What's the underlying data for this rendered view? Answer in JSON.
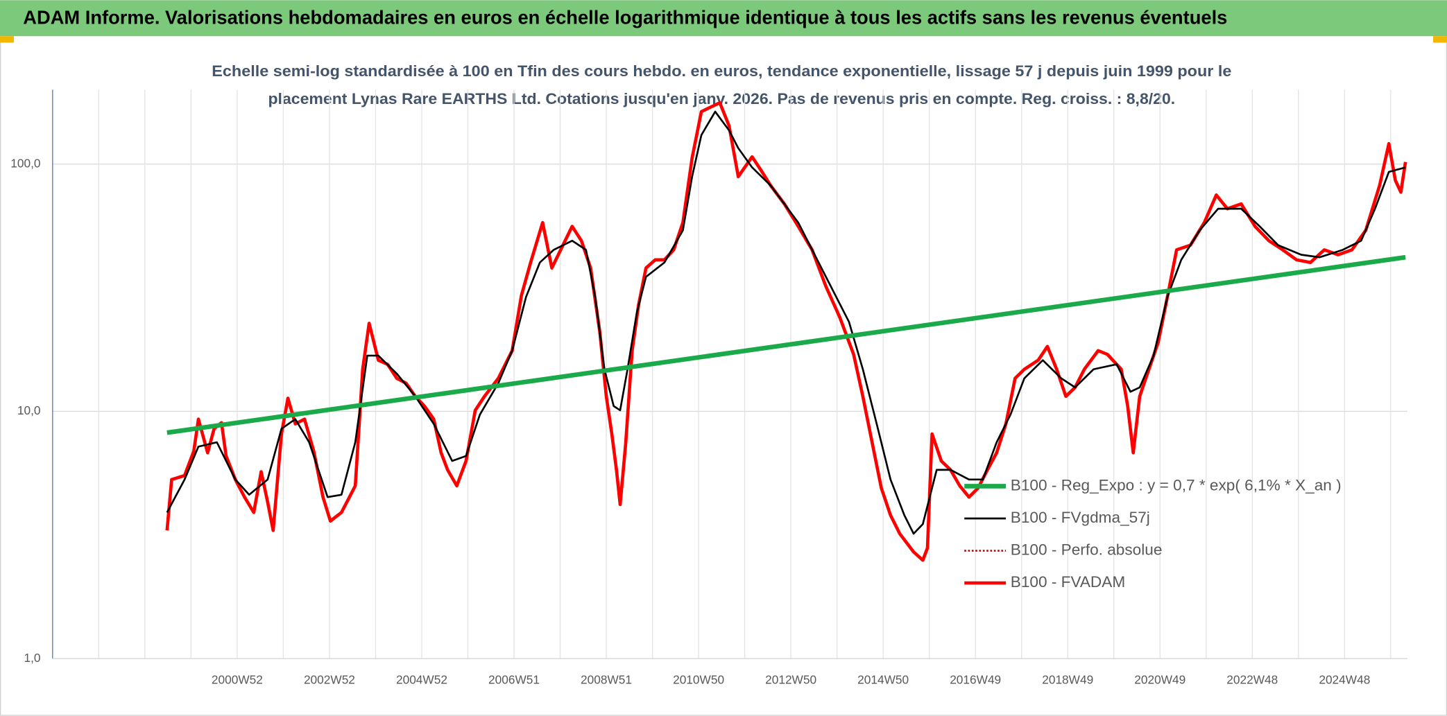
{
  "chart_data": {
    "type": "line",
    "title": "ADAM Informe. Valorisations hebdomadaires en euros en échelle logarithmique identique à tous les actifs sans les revenus éventuels",
    "subtitle": [
      "Echelle semi-log standardisée à 100 en Tfin des cours hebdo. en euros, tendance exponentielle, lissage 57 j depuis juin 1999 pour le",
      "placement Lynas Rare EARTHS Ltd. Cotations jusqu'en janv. 2026. Pas de revenus pris en compte. Reg. croiss. : 8,8/20."
    ],
    "log_y": true,
    "grid": true,
    "legend": "lower right",
    "xlim": [
      1997,
      2026.36
    ],
    "xticks": [
      {
        "value": 2001,
        "label": "2000W52"
      },
      {
        "value": 2003,
        "label": "2002W52"
      },
      {
        "value": 2005,
        "label": "2004W52"
      },
      {
        "value": 2007,
        "label": "2006W51"
      },
      {
        "value": 2009,
        "label": "2008W51"
      },
      {
        "value": 2011,
        "label": "2010W50"
      },
      {
        "value": 2013,
        "label": "2012W50"
      },
      {
        "value": 2015,
        "label": "2014W50"
      },
      {
        "value": 2017,
        "label": "2016W49"
      },
      {
        "value": 2019,
        "label": "2018W49"
      },
      {
        "value": 2021,
        "label": "2020W49"
      },
      {
        "value": 2023,
        "label": "2022W48"
      },
      {
        "value": 2025,
        "label": "2024W48"
      }
    ],
    "ylim": [
      1,
      200
    ],
    "yticks": [
      {
        "value": 1,
        "label": "1,0"
      },
      {
        "value": 10,
        "label": "10,0"
      },
      {
        "value": 100,
        "label": "100,0"
      }
    ],
    "series": [
      {
        "name": "B100 - Reg_Expo : y = 0,7 * exp( 6,1% *  X_an )",
        "color": "#1aaa4a",
        "width": 5,
        "x": [
          1999.48,
          2026.32
        ],
        "values": [
          8.2,
          42
        ]
      },
      {
        "name": "B100 - FVgdma_57j",
        "color": "#000000",
        "width": 2,
        "x": [
          1999.48,
          1999.86,
          2000.16,
          2000.56,
          2000.96,
          2001.26,
          2001.66,
          2001.96,
          2002.26,
          2002.56,
          2002.96,
          2003.26,
          2003.56,
          2003.82,
          2004.06,
          2004.46,
          2004.86,
          2005.26,
          2005.66,
          2005.96,
          2006.26,
          2006.66,
          2006.96,
          2007.26,
          2007.56,
          2007.86,
          2008.26,
          2008.56,
          2008.76,
          2008.96,
          2009.16,
          2009.3,
          2009.46,
          2009.66,
          2009.86,
          2010.26,
          2010.66,
          2010.86,
          2011.06,
          2011.36,
          2011.66,
          2011.86,
          2012.16,
          2012.56,
          2013.16,
          2013.76,
          2014.26,
          2014.56,
          2014.86,
          2015.16,
          2015.46,
          2015.66,
          2015.86,
          2016.16,
          2016.46,
          2016.86,
          2017.16,
          2017.46,
          2017.76,
          2018.06,
          2018.46,
          2018.86,
          2019.16,
          2019.56,
          2020.06,
          2020.36,
          2020.56,
          2020.86,
          2021.16,
          2021.46,
          2021.86,
          2022.26,
          2022.76,
          2023.16,
          2023.56,
          2024.06,
          2024.46,
          2024.96,
          2025.36,
          2025.66,
          2025.96,
          2026.32
        ],
        "values": [
          3.9,
          5.3,
          7.2,
          7.5,
          5.3,
          4.6,
          5.3,
          8.5,
          9.3,
          7.5,
          4.5,
          4.6,
          7.5,
          16.8,
          16.8,
          14.2,
          11.5,
          8.9,
          6.3,
          6.6,
          9.7,
          13,
          17.6,
          29,
          40,
          45,
          49,
          45,
          29,
          14.8,
          10.5,
          10.1,
          14.8,
          25,
          35,
          40,
          54,
          89,
          131,
          163,
          137,
          116,
          97,
          82,
          58,
          35,
          23,
          14.8,
          8.9,
          5.3,
          3.8,
          3.2,
          3.5,
          5.8,
          5.8,
          5.3,
          5.3,
          7.5,
          9.7,
          13.6,
          16.1,
          13.6,
          12.5,
          14.8,
          15.5,
          12,
          12.5,
          16.8,
          29,
          41,
          54,
          66,
          66,
          56,
          47,
          43,
          42,
          45,
          49,
          66,
          93,
          97
        ]
      },
      {
        "name": "B100 - Perfo. absolue",
        "color": "#c00000",
        "width": 2,
        "dash": "dotted"
      },
      {
        "name": "B100 - FVADAM",
        "color": "#ff0000",
        "width": 3.5,
        "x": [
          1999.48,
          1999.58,
          1999.86,
          2000.06,
          2000.16,
          2000.36,
          2000.5,
          2000.66,
          2000.76,
          2000.96,
          2001.16,
          2001.36,
          2001.52,
          2001.66,
          2001.78,
          2001.96,
          2002.1,
          2002.26,
          2002.46,
          2002.66,
          2002.86,
          2003.02,
          2003.26,
          2003.56,
          2003.72,
          2003.86,
          2004.06,
          2004.26,
          2004.46,
          2004.66,
          2004.86,
          2005.06,
          2005.26,
          2005.42,
          2005.56,
          2005.76,
          2005.96,
          2006.16,
          2006.36,
          2006.66,
          2006.96,
          2007.16,
          2007.36,
          2007.62,
          2007.82,
          2008.06,
          2008.26,
          2008.46,
          2008.66,
          2008.86,
          2009.0,
          2009.12,
          2009.22,
          2009.3,
          2009.42,
          2009.56,
          2009.7,
          2009.86,
          2010.06,
          2010.26,
          2010.46,
          2010.66,
          2010.86,
          2011.06,
          2011.26,
          2011.46,
          2011.66,
          2011.86,
          2012.16,
          2012.36,
          2012.56,
          2012.86,
          2013.16,
          2013.46,
          2013.76,
          2014.06,
          2014.36,
          2014.56,
          2014.76,
          2014.96,
          2015.16,
          2015.36,
          2015.66,
          2015.86,
          2015.96,
          2016.06,
          2016.26,
          2016.46,
          2016.66,
          2016.86,
          2017.06,
          2017.26,
          2017.46,
          2017.66,
          2017.86,
          2018.06,
          2018.36,
          2018.56,
          2018.76,
          2018.96,
          2019.16,
          2019.36,
          2019.66,
          2019.86,
          2020.16,
          2020.3,
          2020.42,
          2020.56,
          2020.76,
          2020.96,
          2021.16,
          2021.36,
          2021.66,
          2021.96,
          2022.22,
          2022.46,
          2022.76,
          2023.06,
          2023.36,
          2023.66,
          2023.96,
          2024.26,
          2024.56,
          2024.86,
          2025.16,
          2025.46,
          2025.76,
          2025.96,
          2026.1,
          2026.22,
          2026.32
        ],
        "values": [
          3.3,
          5.3,
          5.5,
          6.9,
          9.3,
          6.8,
          8.5,
          9,
          6.6,
          5.3,
          4.5,
          3.9,
          5.7,
          4.3,
          3.3,
          8.1,
          11.3,
          8.9,
          9.3,
          6.9,
          4.5,
          3.6,
          3.9,
          5.0,
          14.8,
          22.7,
          16.1,
          15.5,
          13.6,
          13.0,
          11.5,
          10.5,
          9.3,
          6.8,
          5.8,
          5.0,
          6.3,
          10.1,
          11.5,
          13.6,
          17.6,
          29.4,
          40,
          58,
          38,
          47,
          56,
          49,
          38,
          20.9,
          11.5,
          8.1,
          5.8,
          4.2,
          7.4,
          17.6,
          27,
          38,
          41,
          41,
          45,
          58,
          106,
          163,
          170,
          177,
          143,
          89,
          107,
          94,
          82,
          69,
          56,
          45,
          32,
          24,
          17,
          11.5,
          7.5,
          4.9,
          3.8,
          3.2,
          2.7,
          2.5,
          2.8,
          8.1,
          6.3,
          5.8,
          5.0,
          4.5,
          4.9,
          5.8,
          6.8,
          8.9,
          13.6,
          14.8,
          16.1,
          18.3,
          14.8,
          11.5,
          12.5,
          14.8,
          17.6,
          17,
          14.8,
          10.5,
          6.8,
          11.5,
          14.8,
          19,
          29,
          45,
          47,
          58,
          75,
          66,
          69,
          56,
          49,
          45,
          41,
          40,
          45,
          43,
          45,
          54,
          82,
          121,
          86,
          77,
          102
        ]
      }
    ]
  }
}
